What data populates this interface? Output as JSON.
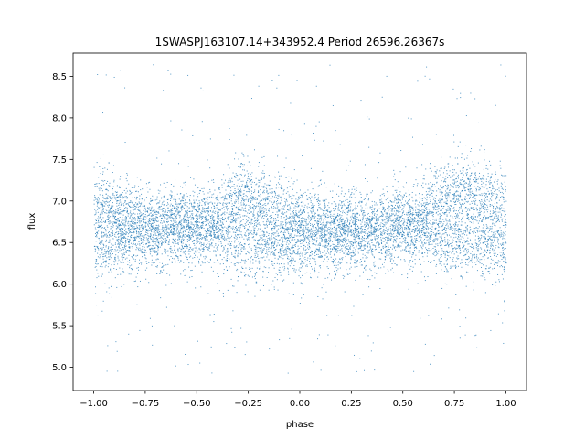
{
  "chart_data": {
    "type": "scatter",
    "title": "1SWASPJ163107.14+343952.4 Period 26596.26367s",
    "xlabel": "phase",
    "ylabel": "flux",
    "xlim": [
      -1.1,
      1.1
    ],
    "ylim": [
      4.72,
      8.78
    ],
    "xticks": [
      -1.0,
      -0.75,
      -0.5,
      -0.25,
      0.0,
      0.25,
      0.5,
      0.75,
      1.0
    ],
    "xtick_labels": [
      "−1.00",
      "−0.75",
      "−0.50",
      "−0.25",
      "0.00",
      "0.25",
      "0.50",
      "0.75",
      "1.00"
    ],
    "yticks": [
      5.0,
      5.5,
      6.0,
      6.5,
      7.0,
      7.5,
      8.0,
      8.5
    ],
    "ytick_labels": [
      "5.0",
      "5.5",
      "6.0",
      "6.5",
      "7.0",
      "7.5",
      "8.0",
      "8.5"
    ],
    "grid": false,
    "marker_color": "#1f77b4",
    "series": [
      {
        "x_range": [
          -1.0,
          1.0
        ],
        "y_range": [
          4.9,
          8.65
        ],
        "bands": [
          {
            "center_at_phase": [
              {
                "x": -1.0,
                "y": 7.0
              },
              {
                "x": -0.75,
                "y": 6.75
              },
              {
                "x": -0.5,
                "y": 6.75
              },
              {
                "x": -0.25,
                "y": 7.05
              },
              {
                "x": 0.0,
                "y": 6.8
              },
              {
                "x": 0.25,
                "y": 6.65
              },
              {
                "x": 0.5,
                "y": 6.7
              },
              {
                "x": 0.75,
                "y": 7.1
              },
              {
                "x": 1.0,
                "y": 7.0
              }
            ]
          },
          {
            "center_at_phase": [
              {
                "x": -1.0,
                "y": 6.45
              },
              {
                "x": -0.75,
                "y": 6.6
              },
              {
                "x": -0.5,
                "y": 6.65
              },
              {
                "x": -0.25,
                "y": 6.5
              },
              {
                "x": 0.0,
                "y": 6.5
              },
              {
                "x": 0.25,
                "y": 6.6
              },
              {
                "x": 0.5,
                "y": 6.7
              },
              {
                "x": 0.75,
                "y": 6.5
              },
              {
                "x": 1.0,
                "y": 6.45
              }
            ]
          }
        ]
      }
    ]
  }
}
